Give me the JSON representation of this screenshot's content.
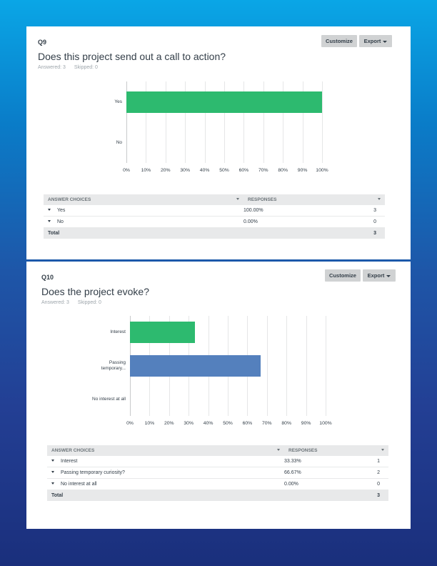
{
  "questions": [
    {
      "number": "Q9",
      "title": "Does this project send out a call to action?",
      "answered": "Answered: 3",
      "skipped": "Skipped: 0",
      "customize_label": "Customize",
      "export_label": "Export",
      "chart_data": {
        "type": "bar",
        "orientation": "horizontal",
        "categories": [
          "Yes",
          "No"
        ],
        "values": [
          100,
          0
        ],
        "xlim": [
          0,
          100
        ],
        "ticks": [
          "0%",
          "10%",
          "20%",
          "30%",
          "40%",
          "50%",
          "60%",
          "70%",
          "80%",
          "90%",
          "100%"
        ],
        "colors": [
          "#2dba6f",
          "#2dba6f"
        ],
        "grid": true
      },
      "table": {
        "headers": [
          "ANSWER CHOICES",
          "RESPONSES"
        ],
        "rows": [
          {
            "choice": "Yes",
            "percent": "100.00%",
            "count": "3"
          },
          {
            "choice": "No",
            "percent": "0.00%",
            "count": "0"
          }
        ],
        "total_label": "Total",
        "total_count": "3"
      }
    },
    {
      "number": "Q10",
      "title": "Does the project evoke?",
      "answered": "Answered: 3",
      "skipped": "Skipped: 0",
      "customize_label": "Customize",
      "export_label": "Export",
      "chart_data": {
        "type": "bar",
        "orientation": "horizontal",
        "categories": [
          "Interest",
          "Passing temporary...",
          "No interest at all"
        ],
        "values": [
          33.33,
          66.67,
          0
        ],
        "xlim": [
          0,
          100
        ],
        "ticks": [
          "0%",
          "10%",
          "20%",
          "30%",
          "40%",
          "50%",
          "60%",
          "70%",
          "80%",
          "90%",
          "100%"
        ],
        "colors": [
          "#2dba6f",
          "#5480bd",
          "#2dba6f"
        ],
        "grid": true
      },
      "table": {
        "headers": [
          "ANSWER CHOICES",
          "RESPONSES"
        ],
        "rows": [
          {
            "choice": "Interest",
            "percent": "33.33%",
            "count": "1"
          },
          {
            "choice": "Passing temporary curiosity?",
            "percent": "66.67%",
            "count": "2"
          },
          {
            "choice": "No interest at all",
            "percent": "0.00%",
            "count": "0"
          }
        ],
        "total_label": "Total",
        "total_count": "3"
      }
    }
  ]
}
